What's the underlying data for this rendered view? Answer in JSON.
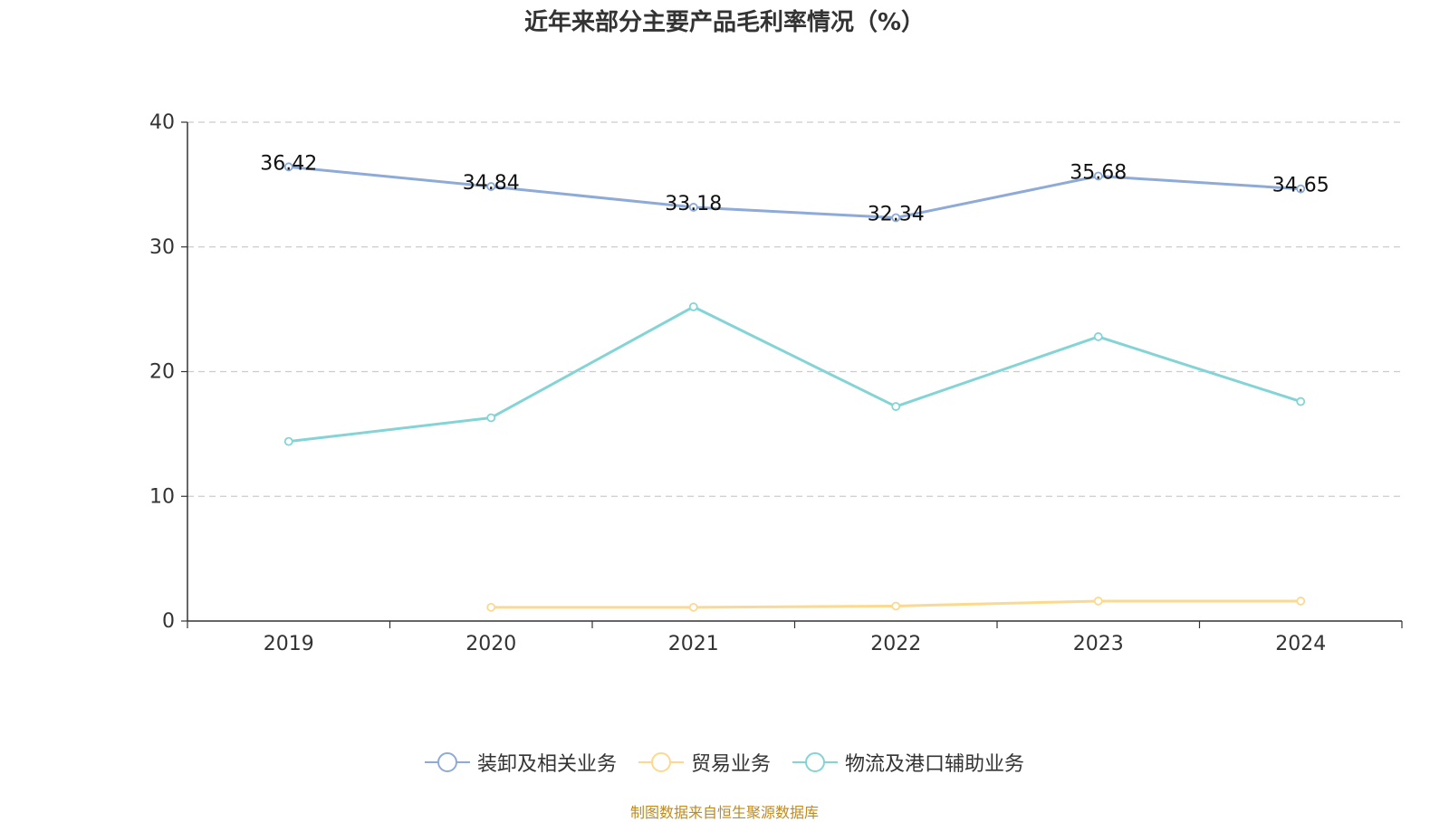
{
  "chart_data": {
    "type": "line",
    "title": "近年来部分主要产品毛利率情况（%）",
    "categories": [
      "2019",
      "2020",
      "2021",
      "2022",
      "2023",
      "2024"
    ],
    "ylim": [
      0,
      40
    ],
    "yticks": [
      "0",
      "10",
      "20",
      "30",
      "40"
    ],
    "grid": true,
    "legend_position": "bottom",
    "series": [
      {
        "name": "装卸及相关业务",
        "color": "#8eaad8",
        "values": [
          36.42,
          34.84,
          33.18,
          32.34,
          35.68,
          34.65
        ],
        "labels": [
          "36.42",
          "34.84",
          "33.18",
          "32.34",
          "35.68",
          "34.65"
        ]
      },
      {
        "name": "贸易业务",
        "color": "#fcd98e",
        "values": [
          null,
          1.1,
          1.1,
          1.2,
          1.6,
          1.6
        ]
      },
      {
        "name": "物流及港口辅助业务",
        "color": "#84d4d6",
        "values": [
          14.4,
          16.3,
          25.2,
          17.2,
          22.8,
          17.6
        ]
      }
    ]
  },
  "source": "制图数据来自恒生聚源数据库"
}
